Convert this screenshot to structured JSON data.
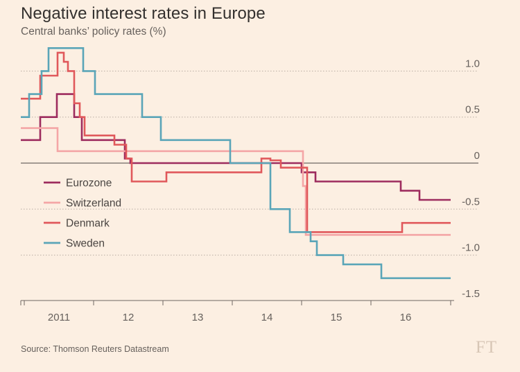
{
  "title": "Negative interest rates in Europe",
  "subtitle": "Central banks’ policy rates (%)",
  "source": "Source: Thomson Reuters Datastream",
  "logo": "FT",
  "chart_data": {
    "type": "line",
    "title": "Negative interest rates in Europe",
    "ylabel": "Central banks’ policy rates (%)",
    "xlabel": "",
    "xlim": [
      2010.45,
      2016.7
    ],
    "ylim": [
      -1.5,
      1.25
    ],
    "x_ticks": [
      {
        "value": 2011,
        "label": "2011"
      },
      {
        "value": 2012,
        "label": "12"
      },
      {
        "value": 2013,
        "label": "13"
      },
      {
        "value": 2014,
        "label": "14"
      },
      {
        "value": 2015,
        "label": "15"
      },
      {
        "value": 2016,
        "label": "16"
      }
    ],
    "y_ticks": [
      {
        "value": 1.0,
        "label": "1.0"
      },
      {
        "value": 0.5,
        "label": "0.5"
      },
      {
        "value": 0,
        "label": "0"
      },
      {
        "value": -0.5,
        "label": "-0.5"
      },
      {
        "value": -1.0,
        "label": "-1.0"
      },
      {
        "value": -1.5,
        "label": "-1.5"
      }
    ],
    "legend_position": "left-middle",
    "series": [
      {
        "name": "Eurozone",
        "color": "#9d2c5e",
        "step": true,
        "points": [
          [
            2010.45,
            0.25
          ],
          [
            2010.73,
            0.5
          ],
          [
            2010.97,
            0.75
          ],
          [
            2011.22,
            0.5
          ],
          [
            2011.33,
            0.25
          ],
          [
            2011.95,
            0.05
          ],
          [
            2012.03,
            0.0
          ],
          [
            2014.45,
            0.0
          ],
          [
            2014.5,
            -0.1
          ],
          [
            2014.7,
            -0.2
          ],
          [
            2015.45,
            -0.2
          ],
          [
            2015.93,
            -0.3
          ],
          [
            2016.2,
            -0.4
          ],
          [
            2016.65,
            -0.4
          ]
        ]
      },
      {
        "name": "Switzerland",
        "color": "#f4a6a6",
        "step": true,
        "points": [
          [
            2010.45,
            0.38
          ],
          [
            2010.98,
            0.13
          ],
          [
            2014.48,
            0.13
          ],
          [
            2014.52,
            -0.25
          ],
          [
            2014.56,
            -0.78
          ],
          [
            2016.65,
            -0.78
          ]
        ]
      },
      {
        "name": "Denmark",
        "color": "#e0585b",
        "step": true,
        "points": [
          [
            2010.45,
            0.7
          ],
          [
            2010.73,
            0.95
          ],
          [
            2010.98,
            1.2
          ],
          [
            2011.07,
            1.1
          ],
          [
            2011.13,
            1.0
          ],
          [
            2011.22,
            0.65
          ],
          [
            2011.3,
            0.5
          ],
          [
            2011.37,
            0.3
          ],
          [
            2011.8,
            0.2
          ],
          [
            2011.97,
            0.05
          ],
          [
            2012.05,
            -0.2
          ],
          [
            2012.55,
            -0.1
          ],
          [
            2013.92,
            0.05
          ],
          [
            2014.05,
            0.03
          ],
          [
            2014.2,
            -0.05
          ],
          [
            2014.58,
            -0.75
          ],
          [
            2015.95,
            -0.65
          ],
          [
            2016.65,
            -0.65
          ]
        ]
      },
      {
        "name": "Sweden",
        "color": "#5aa5b8",
        "step": true,
        "points": [
          [
            2010.45,
            0.5
          ],
          [
            2010.57,
            0.75
          ],
          [
            2010.75,
            1.0
          ],
          [
            2010.85,
            1.25
          ],
          [
            2011.35,
            1.0
          ],
          [
            2011.52,
            0.75
          ],
          [
            2012.2,
            0.5
          ],
          [
            2012.47,
            0.25
          ],
          [
            2013.47,
            0.0
          ],
          [
            2014.05,
            -0.5
          ],
          [
            2014.33,
            -0.75
          ],
          [
            2014.63,
            -0.85
          ],
          [
            2014.72,
            -1.0
          ],
          [
            2015.1,
            -1.1
          ],
          [
            2015.65,
            -1.25
          ],
          [
            2016.65,
            -1.25
          ]
        ]
      }
    ]
  }
}
